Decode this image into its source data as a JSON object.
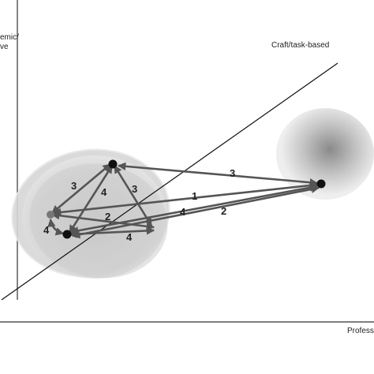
{
  "labels": {
    "top_left_line1": "emic/",
    "top_left_line2": "ve",
    "diagonal_label": "Craft/task-based",
    "bottom_right": "Profess"
  },
  "edge_labels": [
    "3",
    "4",
    "3",
    "2",
    "4",
    "4",
    "1",
    "3",
    "4",
    "2"
  ],
  "colors": {
    "frame": "#333333",
    "arrow": "#555555",
    "node": "#111111",
    "cluster_fill": "#bbbbbb"
  }
}
